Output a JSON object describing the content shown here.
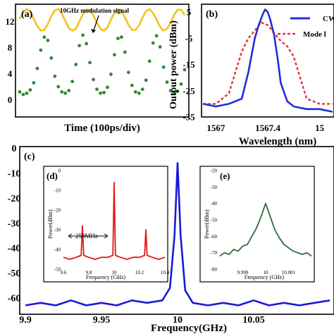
{
  "chart_data": [
    {
      "panel": "(a)",
      "type": "line",
      "xlabel": "Time (100ps/div)",
      "ylabel": "",
      "ylim": [
        -2,
        14
      ],
      "yticks": [
        "0",
        "4",
        "8",
        "12"
      ],
      "annotation": "10GHz modulation signal",
      "series": [
        {
          "role": "modulation",
          "color": "#f2c318",
          "style": "line",
          "x": [
            0,
            20,
            40,
            60,
            80,
            100,
            120,
            140,
            160,
            180,
            200,
            220,
            240,
            260,
            280,
            300,
            320,
            340,
            360,
            380,
            400,
            420,
            440,
            460,
            480,
            500,
            520,
            540,
            560,
            580,
            600,
            620,
            640,
            660,
            680,
            700,
            720,
            740,
            760,
            780,
            800,
            820,
            840,
            860,
            880,
            900,
            920,
            940
          ],
          "y": [
            12.4,
            13.4,
            13.9,
            13.5,
            12.4,
            11.3,
            10.6,
            10.7,
            11.6,
            12.8,
            13.7,
            13.9,
            13.2,
            12.1,
            11.0,
            10.6,
            10.9,
            12.0,
            13.1,
            13.8,
            13.8,
            12.9,
            11.8,
            10.9,
            10.6,
            11.1,
            12.3,
            13.3,
            13.9,
            13.6,
            12.6,
            11.5,
            10.7,
            10.7,
            11.4,
            12.6,
            13.6,
            13.9,
            13.3,
            12.3,
            11.2,
            10.6,
            10.9,
            11.8,
            13.0,
            13.8,
            13.8,
            13.0
          ]
        },
        {
          "role": "optical pulse",
          "color": "#2e8b2e",
          "style": "points",
          "x": [
            0,
            20,
            40,
            60,
            80,
            100,
            120,
            140,
            160,
            180,
            200,
            220,
            240,
            260,
            280,
            300,
            320,
            340,
            360,
            380,
            400,
            420,
            440,
            460,
            480,
            500,
            520,
            540,
            560,
            580,
            600,
            620,
            640,
            660,
            680,
            700,
            720,
            740,
            760,
            780,
            800,
            820,
            840,
            860,
            880,
            900,
            920,
            940
          ],
          "y": [
            1.2,
            0.8,
            1.0,
            1.5,
            2.6,
            4.8,
            7.6,
            9.6,
            9.1,
            6.4,
            3.6,
            2.0,
            1.2,
            1.0,
            1.4,
            2.8,
            5.4,
            8.3,
            9.9,
            8.6,
            5.7,
            3.1,
            1.6,
            1.0,
            1.1,
            1.9,
            3.9,
            6.9,
            9.4,
            9.6,
            7.3,
            4.2,
            2.2,
            1.2,
            1.0,
            1.6,
            3.0,
            5.9,
            8.7,
            9.8,
            8.1,
            5.0,
            2.7,
            1.4,
            1.0,
            1.3,
            2.4,
            4.6
          ]
        }
      ]
    },
    {
      "panel": "(b)",
      "type": "line",
      "xlabel": "Wavelength (nm)",
      "ylabel": "Output power (dBm)",
      "xlim": [
        1566.9,
        1567.9
      ],
      "ylim": [
        -35,
        8
      ],
      "xticks": [
        "1567",
        "1567.4",
        "15"
      ],
      "yticks": [
        "5",
        "-5",
        "-15",
        "-25",
        "-35"
      ],
      "legend_position": "top-right",
      "series": [
        {
          "name": "CW",
          "color": "#1f2fd6",
          "style": "solid",
          "x": [
            1566.9,
            1567.0,
            1567.1,
            1567.2,
            1567.25,
            1567.3,
            1567.33,
            1567.36,
            1567.38,
            1567.4,
            1567.42,
            1567.45,
            1567.48,
            1567.5,
            1567.55,
            1567.6,
            1567.7,
            1567.8,
            1567.9
          ],
          "y": [
            -30,
            -31,
            -30,
            -28,
            -18,
            -5,
            0,
            4,
            6,
            5,
            2,
            -4,
            -14,
            -22,
            -29,
            -31,
            -32,
            -32,
            -33
          ]
        },
        {
          "name": "Mode l",
          "color": "#e23434",
          "style": "dashed",
          "x": [
            1566.9,
            1567.0,
            1567.1,
            1567.15,
            1567.2,
            1567.25,
            1567.3,
            1567.35,
            1567.4,
            1567.45,
            1567.5,
            1567.55,
            1567.6,
            1567.65,
            1567.7,
            1567.8,
            1567.9
          ],
          "y": [
            -30,
            -30,
            -26,
            -18,
            -10,
            -5,
            -2,
            1,
            0,
            -3,
            -6,
            -8,
            -12,
            -20,
            -28,
            -30,
            -30
          ]
        }
      ]
    },
    {
      "panel": "(c)",
      "type": "line",
      "xlabel": "Frequency(GHz)",
      "ylabel": "",
      "xlim": [
        9.9,
        10.1
      ],
      "ylim": [
        -66,
        0
      ],
      "xticks": [
        "9.9",
        "9.95",
        "10",
        "10.05"
      ],
      "yticks": [
        "0",
        "-10",
        "-20",
        "-30",
        "-40",
        "-50",
        "-60"
      ],
      "series": [
        {
          "color": "#1a1ad8",
          "style": "solid",
          "x": [
            9.9,
            9.91,
            9.92,
            9.93,
            9.94,
            9.95,
            9.96,
            9.97,
            9.98,
            9.99,
            9.995,
            9.998,
            10.0,
            10.002,
            10.005,
            10.01,
            10.02,
            10.03,
            10.04,
            10.05,
            10.06,
            10.07,
            10.08,
            10.09,
            10.1
          ],
          "y": [
            -63,
            -62,
            -63,
            -61,
            -63,
            -62,
            -63,
            -61,
            -62,
            -61,
            -56,
            -35,
            -6,
            -35,
            -57,
            -62,
            -63,
            -62,
            -63,
            -61,
            -63,
            -62,
            -63,
            -62,
            -61
          ]
        }
      ]
    },
    {
      "panel": "(d)",
      "type": "line",
      "xlabel": "Frequency (GHz)",
      "ylabel": "Power(dBm)",
      "xlim": [
        9.6,
        10.4
      ],
      "ylim": [
        -50,
        0
      ],
      "xticks": [
        "9.6",
        "9.8",
        "10",
        "10.2",
        "10.4"
      ],
      "yticks": [
        "0",
        "-10",
        "-20",
        "-30",
        "-40",
        "-50"
      ],
      "annotation": "250MHz",
      "series": [
        {
          "color": "#e01818",
          "style": "solid",
          "x": [
            9.6,
            9.65,
            9.7,
            9.74,
            9.75,
            9.76,
            9.8,
            9.85,
            9.9,
            9.95,
            9.99,
            10.0,
            10.01,
            10.05,
            10.1,
            10.15,
            10.2,
            10.24,
            10.25,
            10.26,
            10.3,
            10.35,
            10.4
          ],
          "y": [
            -44,
            -45,
            -44,
            -43,
            -28,
            -43,
            -44,
            -45,
            -44,
            -44,
            -43,
            -6,
            -43,
            -44,
            -45,
            -44,
            -44,
            -43,
            -30,
            -43,
            -44,
            -45,
            -44
          ]
        }
      ]
    },
    {
      "panel": "(e)",
      "type": "line",
      "xlabel": "Frequency (GHz)",
      "ylabel": "Power(dBm)",
      "xlim": [
        9.998,
        10.002
      ],
      "ylim": [
        -80,
        -20
      ],
      "xticks": [
        "9.999",
        "10",
        "10.001"
      ],
      "yticks": [
        "-20",
        "-30",
        "-40",
        "-50",
        "-60",
        "-70",
        "-80"
      ],
      "series": [
        {
          "color": "#2e6b3a",
          "style": "solid",
          "x": [
            9.998,
            9.9982,
            9.9984,
            9.9986,
            9.9988,
            9.999,
            9.9992,
            9.9994,
            9.9996,
            9.9998,
            10.0,
            10.0002,
            10.0004,
            10.0006,
            10.0008,
            10.001,
            10.0012,
            10.0014,
            10.0016,
            10.0018,
            10.002
          ],
          "y": [
            -72,
            -70,
            -71,
            -68,
            -69,
            -66,
            -65,
            -60,
            -55,
            -48,
            -40,
            -48,
            -56,
            -61,
            -65,
            -67,
            -69,
            -70,
            -71,
            -70,
            -72
          ]
        }
      ]
    }
  ]
}
